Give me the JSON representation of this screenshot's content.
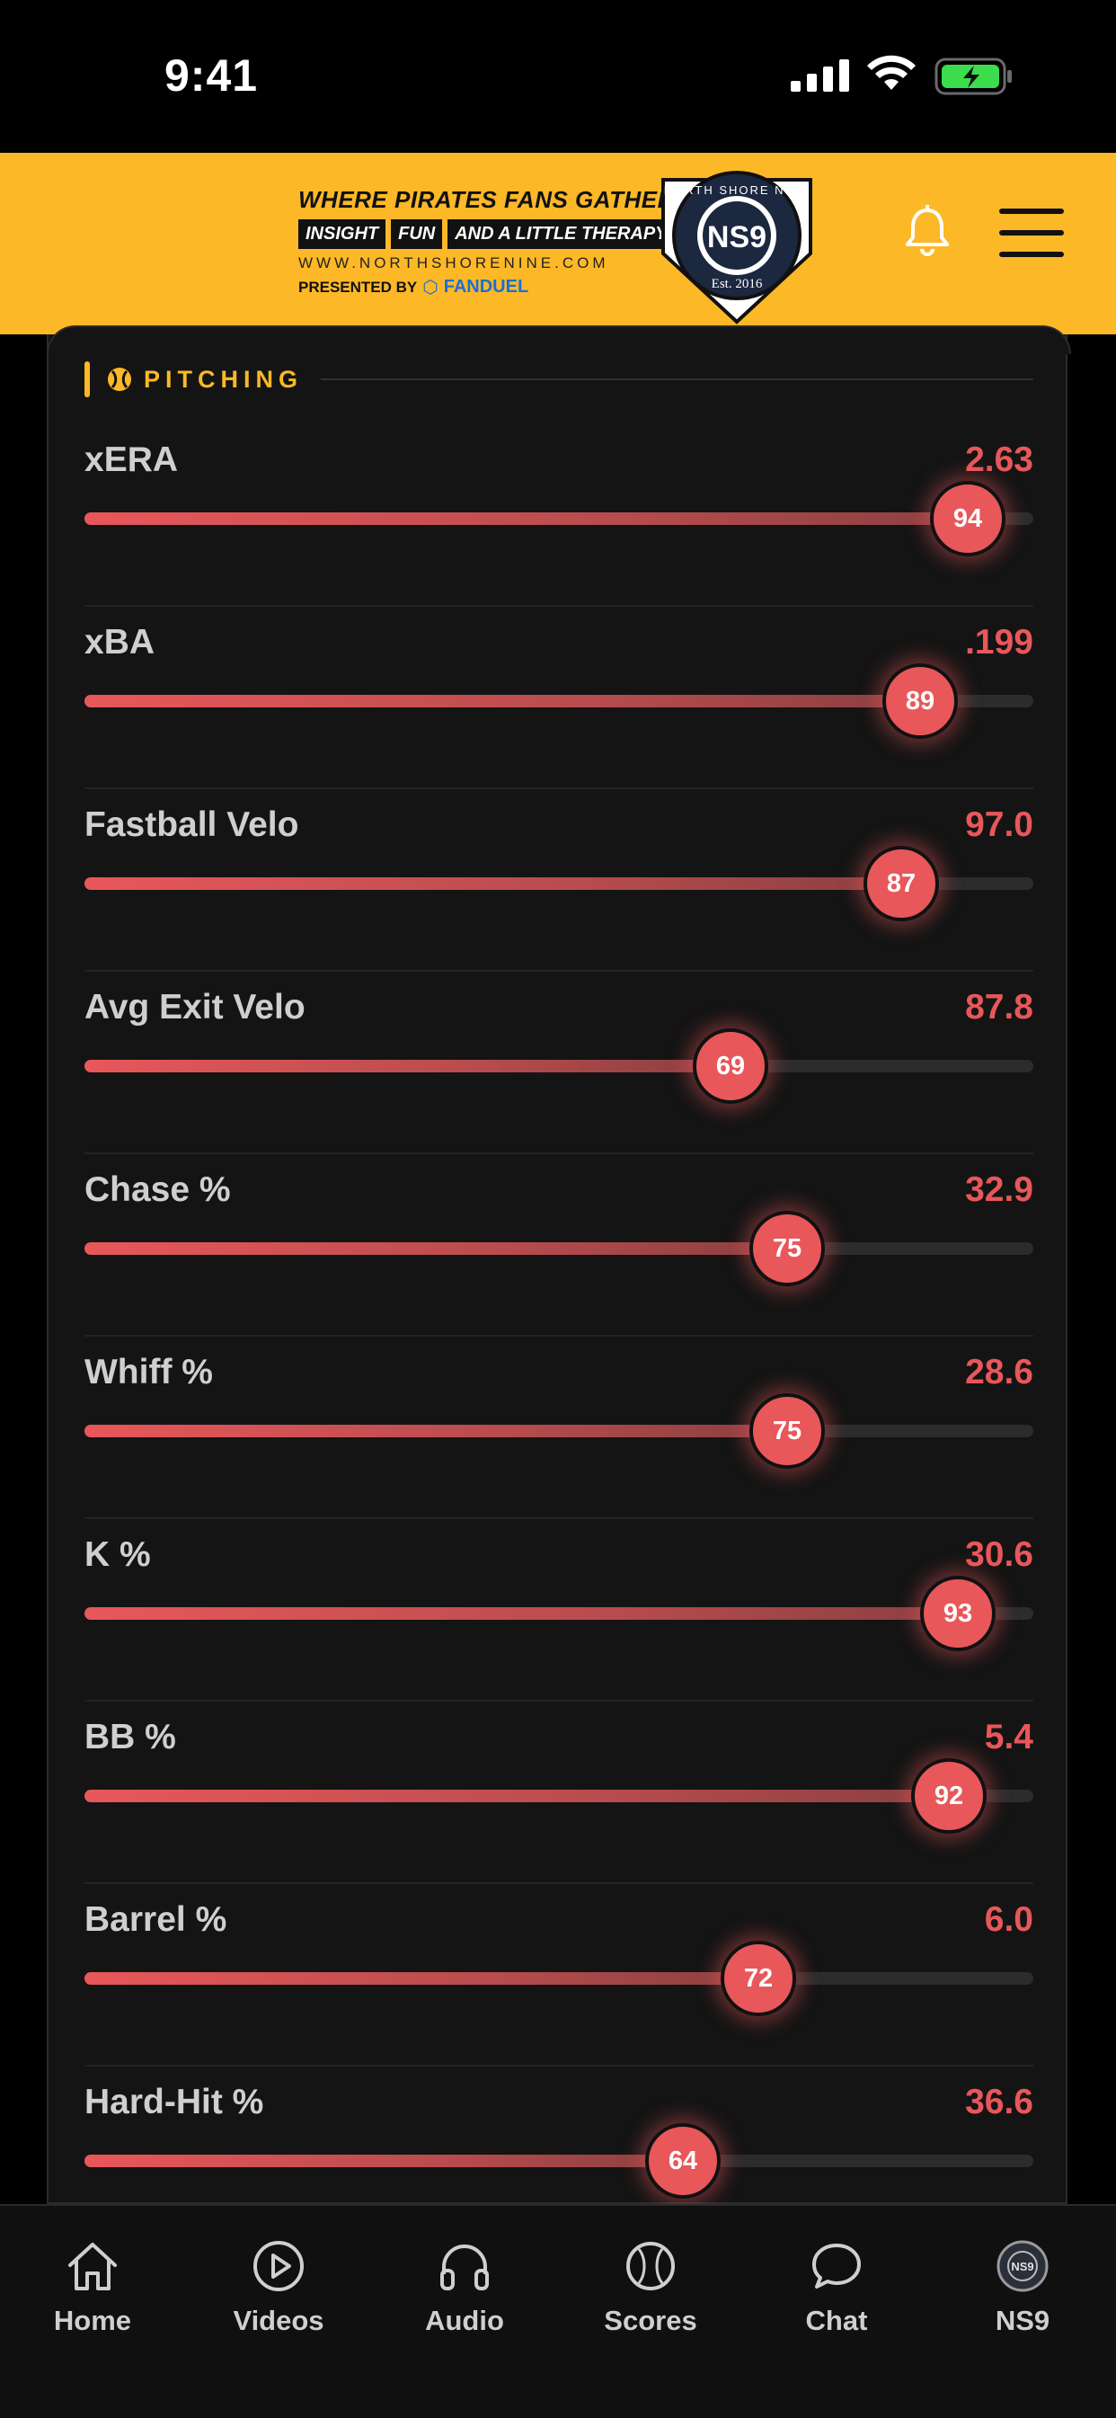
{
  "status": {
    "time": "9:41"
  },
  "header": {
    "tagline": "WHERE PIRATES FANS GATHER FOR",
    "pills": [
      "INSIGHT",
      "FUN",
      "AND A LITTLE THERAPY"
    ],
    "website": "WWW.NORTHSHORENINE.COM",
    "presented_by": "PRESENTED BY",
    "sponsor": "FANDUEL",
    "badge_ring_text": "NORTH SHORE NINE",
    "badge_abbr": "NS9",
    "badge_est": "Est. 2016"
  },
  "section": {
    "title": "PITCHING"
  },
  "stats": [
    {
      "label": "xERA",
      "value": "2.63",
      "percentile": 94
    },
    {
      "label": "xBA",
      "value": ".199",
      "percentile": 89
    },
    {
      "label": "Fastball Velo",
      "value": "97.0",
      "percentile": 87
    },
    {
      "label": "Avg Exit Velo",
      "value": "87.8",
      "percentile": 69
    },
    {
      "label": "Chase %",
      "value": "32.9",
      "percentile": 75
    },
    {
      "label": "Whiff %",
      "value": "28.6",
      "percentile": 75
    },
    {
      "label": "K %",
      "value": "30.6",
      "percentile": 93
    },
    {
      "label": "BB %",
      "value": "5.4",
      "percentile": 92
    },
    {
      "label": "Barrel %",
      "value": "6.0",
      "percentile": 72
    },
    {
      "label": "Hard-Hit %",
      "value": "36.6",
      "percentile": 64
    }
  ],
  "tabs": [
    {
      "label": "Home",
      "icon": "home-icon"
    },
    {
      "label": "Videos",
      "icon": "play-icon"
    },
    {
      "label": "Audio",
      "icon": "headphones-icon"
    },
    {
      "label": "Scores",
      "icon": "baseball-icon"
    },
    {
      "label": "Chat",
      "icon": "chat-icon"
    },
    {
      "label": "NS9",
      "icon": "ns9-logo-icon"
    }
  ],
  "colors": {
    "accent": "#FDB827",
    "stat": "#E8575A",
    "background": "#000000"
  }
}
